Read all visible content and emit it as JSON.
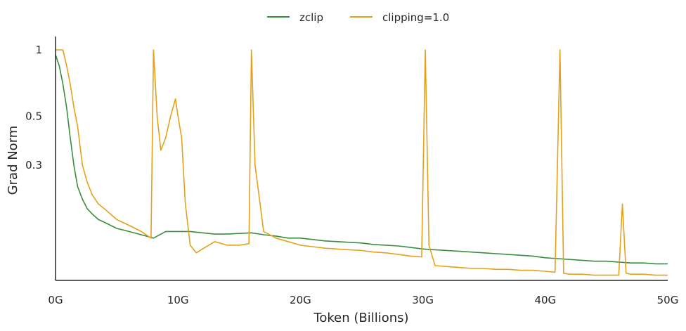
{
  "chart_data": {
    "type": "line",
    "xlabel": "Token (Billions)",
    "ylabel": "Grad Norm",
    "xlim": [
      0,
      50
    ],
    "ylim": [
      0.09,
      1.15
    ],
    "yscale": "log",
    "x_ticks": [
      {
        "value": 0,
        "label": "0G"
      },
      {
        "value": 10,
        "label": "10G"
      },
      {
        "value": 20,
        "label": "20G"
      },
      {
        "value": 30,
        "label": "30G"
      },
      {
        "value": 40,
        "label": "40G"
      },
      {
        "value": 50,
        "label": "50G"
      }
    ],
    "y_ticks": [
      {
        "value": 1,
        "label": "1"
      },
      {
        "value": 0.5,
        "label": "0.5"
      },
      {
        "value": 0.3,
        "label": "0.3"
      }
    ],
    "grid": false,
    "legend": "top-center",
    "series": [
      {
        "name": "zclip",
        "color": "#388e3c",
        "x": [
          0,
          0.3,
          0.6,
          0.9,
          1.2,
          1.5,
          1.8,
          2.2,
          2.6,
          3.0,
          3.5,
          4,
          5,
          6,
          7,
          8,
          9,
          10,
          11,
          12,
          13,
          14,
          15,
          16,
          17,
          18,
          19,
          20,
          21,
          22,
          23,
          24,
          25,
          26,
          27,
          28,
          29,
          30,
          31,
          32,
          33,
          34,
          35,
          36,
          37,
          38,
          39,
          40,
          41,
          42,
          43,
          44,
          45,
          46,
          47,
          48,
          49,
          50
        ],
        "y": [
          0.95,
          0.85,
          0.7,
          0.55,
          0.4,
          0.3,
          0.24,
          0.21,
          0.19,
          0.18,
          0.17,
          0.165,
          0.155,
          0.15,
          0.145,
          0.14,
          0.15,
          0.15,
          0.15,
          0.148,
          0.146,
          0.146,
          0.147,
          0.148,
          0.145,
          0.143,
          0.14,
          0.14,
          0.138,
          0.136,
          0.135,
          0.134,
          0.133,
          0.131,
          0.13,
          0.129,
          0.127,
          0.125,
          0.124,
          0.123,
          0.122,
          0.121,
          0.12,
          0.119,
          0.118,
          0.117,
          0.116,
          0.114,
          0.113,
          0.112,
          0.111,
          0.11,
          0.11,
          0.109,
          0.108,
          0.108,
          0.107,
          0.107
        ]
      },
      {
        "name": "clipping=1.0",
        "color": "#e5a11a",
        "x": [
          0,
          0.3,
          0.6,
          0.9,
          1.2,
          1.5,
          1.8,
          2.2,
          2.6,
          3.0,
          3.5,
          4,
          5,
          6,
          7,
          7.8,
          8.0,
          8.3,
          8.6,
          9.0,
          9.4,
          9.8,
          10.0,
          10.3,
          10.6,
          11,
          11.5,
          12,
          13,
          14,
          15,
          15.8,
          16.0,
          16.3,
          17,
          18,
          19,
          20,
          21,
          22,
          23,
          24,
          25,
          26,
          27,
          28,
          29,
          29.9,
          30.2,
          30.5,
          31,
          32,
          33,
          34,
          35,
          36,
          37,
          38,
          39,
          40,
          40.8,
          41.2,
          41.5,
          42,
          43,
          44,
          45,
          46,
          46.3,
          46.6,
          47,
          48,
          49,
          50
        ],
        "y": [
          1.0,
          1.0,
          1.0,
          0.85,
          0.7,
          0.55,
          0.45,
          0.3,
          0.25,
          0.22,
          0.2,
          0.19,
          0.17,
          0.16,
          0.15,
          0.14,
          1.0,
          0.5,
          0.35,
          0.4,
          0.5,
          0.6,
          0.5,
          0.4,
          0.2,
          0.13,
          0.12,
          0.125,
          0.135,
          0.13,
          0.13,
          0.132,
          1.0,
          0.3,
          0.15,
          0.14,
          0.135,
          0.13,
          0.128,
          0.126,
          0.125,
          0.124,
          0.123,
          0.121,
          0.12,
          0.118,
          0.116,
          0.115,
          1.0,
          0.13,
          0.105,
          0.104,
          0.103,
          0.102,
          0.102,
          0.101,
          0.101,
          0.1,
          0.1,
          0.099,
          0.098,
          1.0,
          0.097,
          0.096,
          0.096,
          0.095,
          0.095,
          0.095,
          0.2,
          0.097,
          0.096,
          0.096,
          0.095,
          0.095
        ]
      }
    ]
  }
}
